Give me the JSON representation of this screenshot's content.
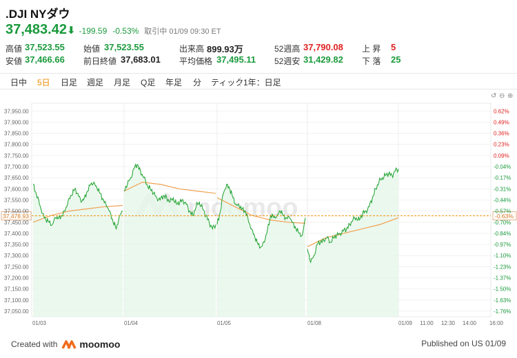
{
  "header": {
    "symbol": ".DJI NYダウ",
    "price": "37,483.42",
    "arrow": "⬇",
    "change": "-199.59",
    "change_pct": "-0.53%",
    "status": "取引中 01/09 09:30 ET"
  },
  "stats": {
    "high_label": "高値",
    "high": "37,523.55",
    "open_label": "始値",
    "open": "37,523.55",
    "volume_label": "出来高",
    "volume": "899.93万",
    "wk52high_label": "52週高",
    "wk52high": "37,790.08",
    "up_label": "上 昇",
    "up": "5",
    "low_label": "安値",
    "low": "37,466.66",
    "prevclose_label": "前日終値",
    "prevclose": "37,683.01",
    "avg_label": "平均価格",
    "avg": "37,495.11",
    "wk52low_label": "52週安",
    "wk52low": "31,429.82",
    "down_label": "下 落",
    "down": "25"
  },
  "tabs": [
    "日中",
    "5日",
    "日足",
    "週足",
    "月足",
    "Q足",
    "年足",
    "分",
    "ティック",
    "1年：日足"
  ],
  "active_tab": "5日",
  "toolbar_icons": [
    "undo-icon",
    "zoom-out-icon",
    "zoom-in-icon"
  ],
  "colors": {
    "up": "#1a9a3c",
    "down": "#e02020",
    "accent": "#f08c00",
    "line": "#19a02a",
    "avg_line": "#f0a050",
    "fill": "#e6f6ea"
  },
  "chart_data": {
    "type": "line",
    "title": "",
    "watermark": "moomoo",
    "ylim": [
      37025,
      37985
    ],
    "y_ticks": [
      "37,950.00",
      "37,900.00",
      "37,850.00",
      "37,800.00",
      "37,750.00",
      "37,700.00",
      "37,650.00",
      "37,600.00",
      "37,550.00",
      "37,500.00",
      "37,450.00",
      "37,400.00",
      "37,350.00",
      "37,300.00",
      "37,250.00",
      "37,200.00",
      "37,150.00",
      "37,100.00",
      "37,050.00"
    ],
    "y_tick_values": [
      37950,
      37900,
      37850,
      37800,
      37750,
      37700,
      37650,
      37600,
      37550,
      37500,
      37450,
      37400,
      37350,
      37300,
      37250,
      37200,
      37150,
      37100,
      37050
    ],
    "pct_ticks": [
      "0.62%",
      "0.49%",
      "0.36%",
      "0.23%",
      "0.09%",
      "-0.04%",
      "-0.17%",
      "-0.31%",
      "-0.44%",
      "-0.57%",
      "-0.70%",
      "-0.84%",
      "-0.97%",
      "-1.10%",
      "-1.23%",
      "-1.37%",
      "-1.50%",
      "-1.63%",
      "-1.76%"
    ],
    "x_ticks": [
      "01/03",
      "01/04",
      "01/05",
      "01/08",
      "01/09",
      "11:00",
      "12:30",
      "14:00",
      "16:00"
    ],
    "reference_line": {
      "value": 37478.93,
      "label": "37,478.93",
      "pct_label": "-0.63%"
    },
    "series": [
      {
        "days": [
          [
            37620,
            37580,
            37530,
            37490,
            37460,
            37450,
            37440,
            37470,
            37470,
            37480,
            37500,
            37550,
            37570,
            37600,
            37580,
            37540,
            37560,
            37590,
            37620,
            37630,
            37600,
            37580,
            37550,
            37520,
            37500,
            37450,
            37420,
            37480,
            37500
          ],
          [
            37590,
            37620,
            37650,
            37690,
            37710,
            37680,
            37650,
            37620,
            37600,
            37580,
            37560,
            37550,
            37570,
            37560,
            37540,
            37560,
            37530,
            37540,
            37550,
            37530,
            37500,
            37480,
            37520,
            37540,
            37510,
            37480,
            37450,
            37420,
            37440
          ],
          [
            37440,
            37500,
            37580,
            37620,
            37600,
            37560,
            37530,
            37520,
            37510,
            37500,
            37450,
            37420,
            37380,
            37350,
            37340,
            37360,
            37420,
            37480,
            37470,
            37480,
            37500,
            37480,
            37470,
            37470,
            37450,
            37420,
            37400,
            37390,
            37470
          ],
          [
            37330,
            37270,
            37300,
            37350,
            37360,
            37370,
            37380,
            37360,
            37380,
            37390,
            37400,
            37410,
            37420,
            37440,
            37460,
            37470,
            37460,
            37490,
            37500,
            37520,
            37560,
            37600,
            37630,
            37650,
            37660,
            37670,
            37660,
            37680,
            37690
          ]
        ]
      },
      {
        "name": "avg",
        "days": [
          [
            37450,
            37480,
            37500,
            37510,
            37520,
            37525
          ],
          [
            37590,
            37630,
            37620,
            37600,
            37590,
            37580
          ],
          [
            37560,
            37520,
            37480,
            37460,
            37450,
            37445
          ],
          [
            37340,
            37380,
            37400,
            37420,
            37440,
            37470
          ]
        ]
      }
    ]
  },
  "footer": {
    "created_with": "Created with",
    "brand": "moomoo",
    "published": "Published on US 01/09"
  }
}
